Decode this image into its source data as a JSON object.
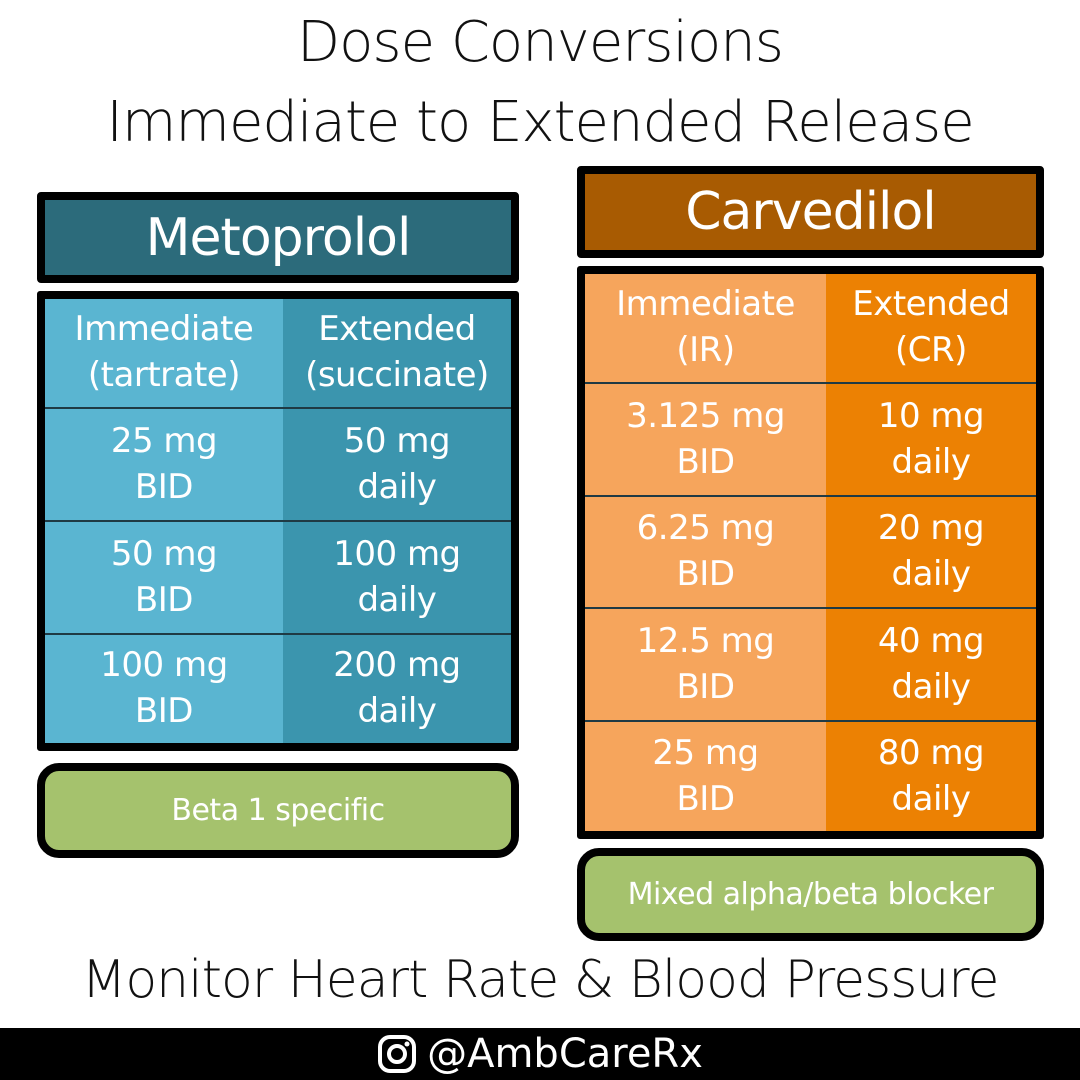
{
  "title": {
    "line1": "Dose Conversions",
    "line2": "Immediate to Extended Release"
  },
  "metoprolol": {
    "name": "Metoprolol",
    "headers": [
      "Immediate\n(tartrate)",
      "Extended\n(succinate)"
    ],
    "rows": [
      [
        "25 mg\nBID",
        "50 mg\ndaily"
      ],
      [
        "50 mg\nBID",
        "100 mg\ndaily"
      ],
      [
        "100 mg\nBID",
        "200 mg\ndaily"
      ]
    ],
    "note": "Beta 1 specific",
    "colors": {
      "title": "#2c6b7b",
      "immediate": "#5ab5d1",
      "extended": "#3b95ae"
    }
  },
  "carvedilol": {
    "name": "Carvedilol",
    "headers": [
      "Immediate\n(IR)",
      "Extended\n(CR)"
    ],
    "rows": [
      [
        "3.125 mg\nBID",
        "10 mg\ndaily"
      ],
      [
        "6.25 mg\nBID",
        "20 mg\ndaily"
      ],
      [
        "12.5 mg\nBID",
        "40 mg\ndaily"
      ],
      [
        "25 mg\nBID",
        "80 mg\ndaily"
      ]
    ],
    "note": "Mixed alpha/beta blocker",
    "colors": {
      "title": "#a85b02",
      "immediate": "#f6a55c",
      "extended": "#ec8103"
    }
  },
  "note_color": "#a5c26d",
  "footer_text": "Monitor Heart Rate & Blood Pressure",
  "social": {
    "icon": "instagram-icon",
    "handle": "@AmbCareRx"
  }
}
